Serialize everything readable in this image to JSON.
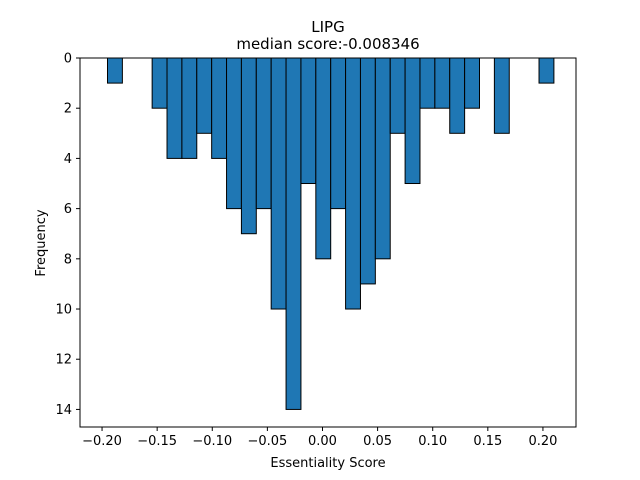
{
  "chart_data": {
    "type": "bar",
    "title": "LIPG",
    "subtitle": "median score:-0.008346",
    "xlabel": "Essentiality Score",
    "ylabel": "Frequency",
    "y_axis_inverted": true,
    "xlim": [
      -0.22,
      0.23
    ],
    "ylim": [
      0,
      14.7
    ],
    "xticks": [
      -0.2,
      -0.15,
      -0.1,
      -0.05,
      0.0,
      0.05,
      0.1,
      0.15,
      0.2
    ],
    "xtick_labels": [
      "−0.20",
      "−0.15",
      "−0.10",
      "−0.05",
      "0.00",
      "0.05",
      "0.10",
      "0.15",
      "0.20"
    ],
    "yticks": [
      0,
      2,
      4,
      6,
      8,
      10,
      12,
      14
    ],
    "ytick_labels": [
      "0",
      "2",
      "4",
      "6",
      "8",
      "10",
      "12",
      "14"
    ],
    "bin_width": 0.0135,
    "bins": [
      {
        "x": -0.1883,
        "count": 1
      },
      {
        "x": -0.1478,
        "count": 2
      },
      {
        "x": -0.1343,
        "count": 4
      },
      {
        "x": -0.1208,
        "count": 4
      },
      {
        "x": -0.1073,
        "count": 3
      },
      {
        "x": -0.0938,
        "count": 4
      },
      {
        "x": -0.0803,
        "count": 6
      },
      {
        "x": -0.0668,
        "count": 7
      },
      {
        "x": -0.0533,
        "count": 6
      },
      {
        "x": -0.0398,
        "count": 10
      },
      {
        "x": -0.0263,
        "count": 14
      },
      {
        "x": -0.0128,
        "count": 5
      },
      {
        "x": 0.0007,
        "count": 8
      },
      {
        "x": 0.0142,
        "count": 6
      },
      {
        "x": 0.0277,
        "count": 10
      },
      {
        "x": 0.0412,
        "count": 9
      },
      {
        "x": 0.0547,
        "count": 8
      },
      {
        "x": 0.0682,
        "count": 3
      },
      {
        "x": 0.0817,
        "count": 5
      },
      {
        "x": 0.0952,
        "count": 2
      },
      {
        "x": 0.1087,
        "count": 2
      },
      {
        "x": 0.1222,
        "count": 3
      },
      {
        "x": 0.1357,
        "count": 2
      },
      {
        "x": 0.1627,
        "count": 3
      },
      {
        "x": 0.2032,
        "count": 1
      }
    ],
    "bar_color": "#1f77b4",
    "edge_color": "#000000",
    "grid": false,
    "legend": "none"
  }
}
